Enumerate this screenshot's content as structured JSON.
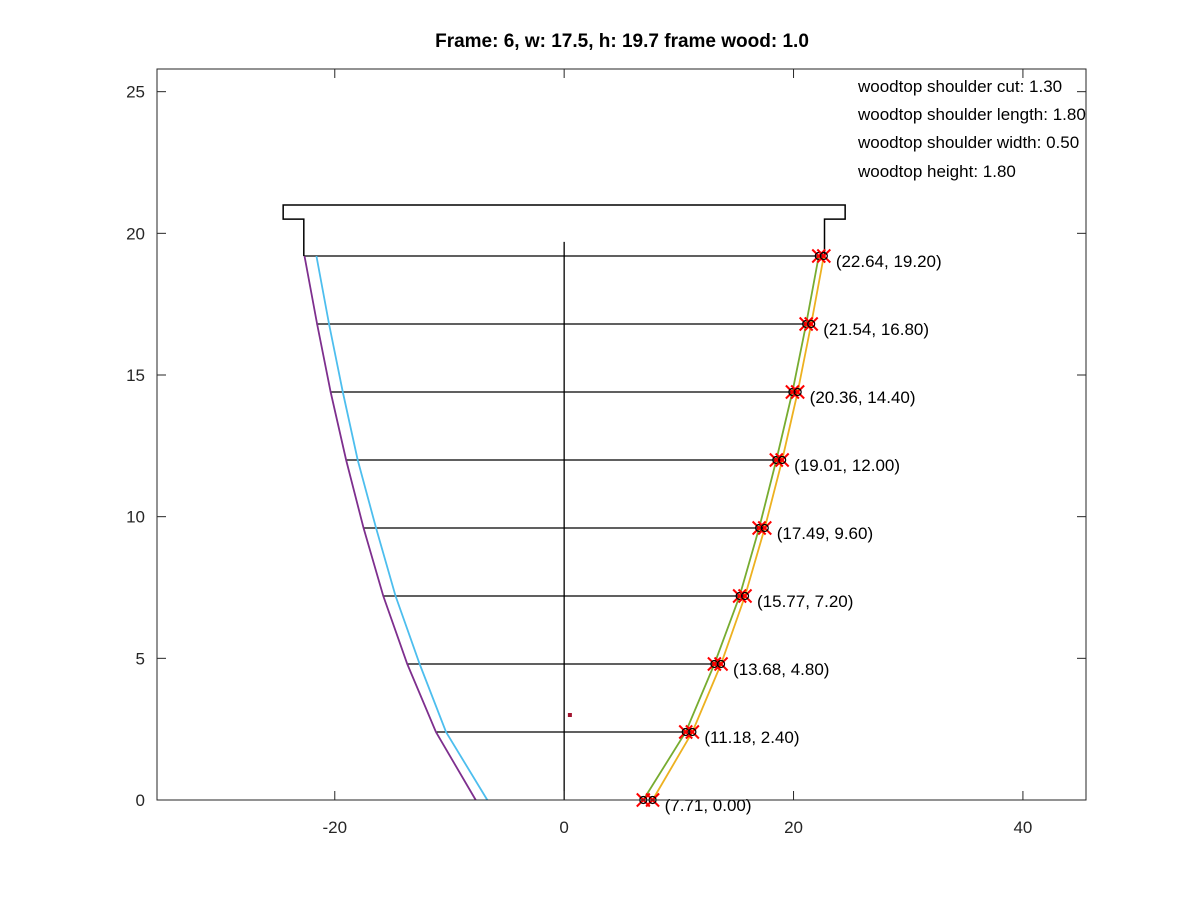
{
  "chart_data": {
    "type": "line",
    "title": "Frame: 6, w: 17.5, h: 19.7 frame wood: 1.0",
    "xlabel": "",
    "ylabel": "",
    "xlim": [
      -35.5,
      45.5
    ],
    "ylim": [
      0,
      25.8
    ],
    "xticks": [
      -20,
      0,
      20,
      40
    ],
    "yticks": [
      0,
      5,
      10,
      15,
      20,
      25
    ],
    "grid": false,
    "annotations": [
      "woodtop shoulder cut: 1.30",
      "woodtop shoulder length: 1.80",
      "woodtop shoulder width: 0.50",
      "woodtop height: 1.80"
    ],
    "series": [
      {
        "color": "#7E2F8E",
        "x": [
          -7.71,
          -11.18,
          -13.68,
          -15.77,
          -17.49,
          -19.01,
          -20.36,
          -21.54,
          -22.64
        ],
        "y": [
          0.0,
          2.4,
          4.8,
          7.2,
          9.6,
          12.0,
          14.4,
          16.8,
          19.2
        ]
      },
      {
        "color": "#4DBEEE",
        "x": [
          -6.7,
          -10.3,
          -12.6,
          -14.7,
          -16.4,
          -18.0,
          -19.3,
          -20.5,
          -21.6
        ],
        "y": [
          0.0,
          2.4,
          4.8,
          7.2,
          9.6,
          12.0,
          14.4,
          16.8,
          19.2
        ]
      },
      {
        "color": "#77AC30",
        "x": [
          6.9,
          10.6,
          13.1,
          15.3,
          17.0,
          18.5,
          19.9,
          21.1,
          22.2
        ],
        "y": [
          0.0,
          2.4,
          4.8,
          7.2,
          9.6,
          12.0,
          14.4,
          16.8,
          19.2
        ]
      },
      {
        "color": "#EDB120",
        "x": [
          7.71,
          11.18,
          13.68,
          15.77,
          17.49,
          19.01,
          20.36,
          21.54,
          22.64
        ],
        "y": [
          0.0,
          2.4,
          4.8,
          7.2,
          9.6,
          12.0,
          14.4,
          16.8,
          19.2
        ]
      }
    ],
    "markers": [
      {
        "x": 7.71,
        "y": 0.0,
        "label": "(7.71, 0.00)"
      },
      {
        "x": 11.18,
        "y": 2.4,
        "label": "(11.18, 2.40)"
      },
      {
        "x": 13.68,
        "y": 4.8,
        "label": "(13.68, 4.80)"
      },
      {
        "x": 15.77,
        "y": 7.2,
        "label": "(15.77, 7.20)"
      },
      {
        "x": 17.49,
        "y": 9.6,
        "label": "(17.49, 9.60)"
      },
      {
        "x": 19.01,
        "y": 12.0,
        "label": "(19.01, 12.00)"
      },
      {
        "x": 20.36,
        "y": 14.4,
        "label": "(20.36, 14.40)"
      },
      {
        "x": 21.54,
        "y": 16.8,
        "label": "(21.54, 16.80)"
      },
      {
        "x": 22.64,
        "y": 19.2,
        "label": "(22.64, 19.20)"
      }
    ],
    "horizontal_lines": [
      {
        "y": 2.4,
        "x1": -11.2,
        "x2": 11.2
      },
      {
        "y": 4.8,
        "x1": -13.7,
        "x2": 13.7
      },
      {
        "y": 7.2,
        "x1": -15.8,
        "x2": 15.8
      },
      {
        "y": 9.6,
        "x1": -17.5,
        "x2": 17.5
      },
      {
        "y": 12.0,
        "x1": -19.0,
        "x2": 19.0
      },
      {
        "y": 14.4,
        "x1": -20.4,
        "x2": 20.4
      },
      {
        "y": 16.8,
        "x1": -21.6,
        "x2": 21.6
      },
      {
        "y": 19.2,
        "x1": -22.7,
        "x2": 22.7
      }
    ],
    "center_line": {
      "x": 0,
      "y1": 0,
      "y2": 19.7
    },
    "woodtop_outline": {
      "x": [
        -22.7,
        -22.7,
        -24.5,
        -24.5,
        24.5,
        24.5,
        22.7,
        22.7
      ],
      "y": [
        19.2,
        20.5,
        20.5,
        21.0,
        21.0,
        20.5,
        20.5,
        19.2
      ]
    },
    "point_marker": {
      "x": 0.5,
      "y": 3.0,
      "color": "#A2142F"
    }
  }
}
